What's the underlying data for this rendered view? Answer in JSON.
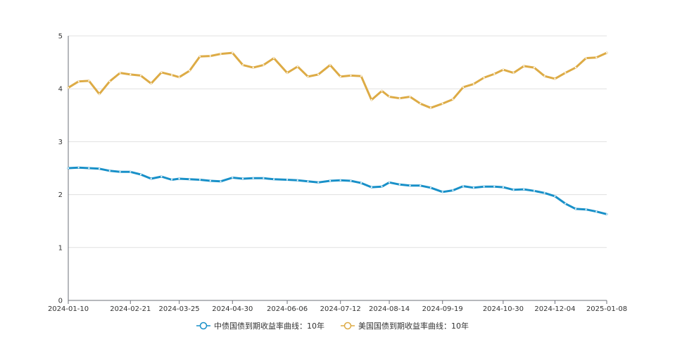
{
  "chart_data": {
    "type": "line",
    "title": "",
    "xlabel": "",
    "ylabel": "",
    "ylim": [
      0,
      5
    ],
    "yticks": [
      "0",
      "1",
      "2",
      "3",
      "4",
      "5"
    ],
    "xticks": [
      "2024-01-10",
      "2024-02-21",
      "2024-03-25",
      "2024-04-30",
      "2024-06-06",
      "2024-07-12",
      "2024-08-14",
      "2024-09-19",
      "2024-10-30",
      "2024-12-04",
      "2025-01-08"
    ],
    "grid": "horizontal",
    "legend_position": "bottom-center",
    "colors": {
      "china": "#1890c8",
      "us": "#ddab45",
      "grid": "#e0e0e0",
      "axis": "#6e7079"
    },
    "x": [
      "2024-01-10",
      "2024-01-17",
      "2024-01-24",
      "2024-01-31",
      "2024-02-07",
      "2024-02-14",
      "2024-02-21",
      "2024-02-28",
      "2024-03-06",
      "2024-03-13",
      "2024-03-20",
      "2024-03-25",
      "2024-04-01",
      "2024-04-08",
      "2024-04-15",
      "2024-04-22",
      "2024-04-30",
      "2024-05-07",
      "2024-05-14",
      "2024-05-21",
      "2024-05-28",
      "2024-06-06",
      "2024-06-13",
      "2024-06-20",
      "2024-06-27",
      "2024-07-05",
      "2024-07-12",
      "2024-07-19",
      "2024-07-26",
      "2024-08-02",
      "2024-08-09",
      "2024-08-14",
      "2024-08-21",
      "2024-08-28",
      "2024-09-04",
      "2024-09-11",
      "2024-09-19",
      "2024-09-26",
      "2024-10-03",
      "2024-10-10",
      "2024-10-17",
      "2024-10-24",
      "2024-10-30",
      "2024-11-06",
      "2024-11-13",
      "2024-11-20",
      "2024-11-27",
      "2024-12-04",
      "2024-12-11",
      "2024-12-18",
      "2024-12-25",
      "2025-01-01",
      "2025-01-08"
    ],
    "series": [
      {
        "name": "中债国债到期收益率曲线：10年",
        "values": [
          2.5,
          2.51,
          2.5,
          2.49,
          2.45,
          2.43,
          2.43,
          2.38,
          2.3,
          2.34,
          2.28,
          2.3,
          2.29,
          2.28,
          2.26,
          2.25,
          2.32,
          2.3,
          2.31,
          2.31,
          2.29,
          2.28,
          2.27,
          2.25,
          2.23,
          2.26,
          2.27,
          2.26,
          2.22,
          2.14,
          2.15,
          2.23,
          2.19,
          2.17,
          2.17,
          2.13,
          2.05,
          2.08,
          2.16,
          2.13,
          2.15,
          2.15,
          2.14,
          2.09,
          2.1,
          2.07,
          2.03,
          1.97,
          1.83,
          1.73,
          1.72,
          1.68,
          1.63
        ]
      },
      {
        "name": "美国国债到期收益率曲线：10年",
        "values": [
          4.02,
          4.14,
          4.15,
          3.9,
          4.14,
          4.3,
          4.27,
          4.25,
          4.1,
          4.31,
          4.26,
          4.22,
          4.34,
          4.61,
          4.62,
          4.66,
          4.68,
          4.45,
          4.4,
          4.45,
          4.58,
          4.3,
          4.42,
          4.23,
          4.27,
          4.45,
          4.23,
          4.25,
          4.24,
          3.79,
          3.96,
          3.85,
          3.82,
          3.85,
          3.72,
          3.64,
          3.72,
          3.8,
          4.03,
          4.09,
          4.21,
          4.28,
          4.36,
          4.3,
          4.43,
          4.4,
          4.24,
          4.19,
          4.3,
          4.4,
          4.58,
          4.59,
          4.68
        ]
      }
    ]
  }
}
